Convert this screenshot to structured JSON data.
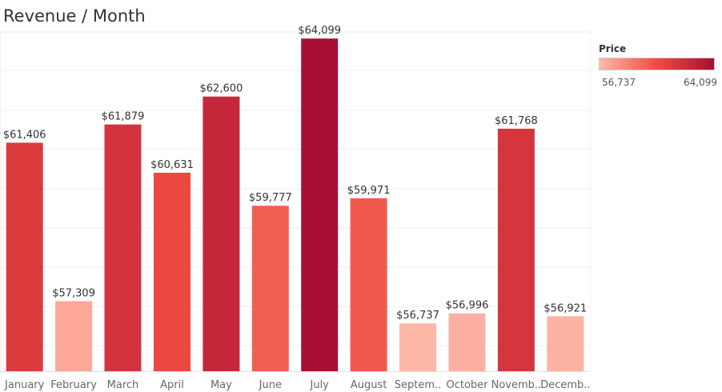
{
  "title": "Revenue / Month",
  "legend": {
    "title": "Price",
    "min_label": "56,737",
    "max_label": "64,099"
  },
  "chart_data": {
    "type": "bar",
    "title": "Revenue / Month",
    "categories": [
      "January",
      "February",
      "March",
      "April",
      "May",
      "June",
      "July",
      "August",
      "September",
      "October",
      "November",
      "December"
    ],
    "category_labels": [
      "January",
      "February",
      "March",
      "April",
      "May",
      "June",
      "July",
      "August",
      "Septem..",
      "October",
      "Novemb..",
      "Decemb.."
    ],
    "values": [
      61406,
      57309,
      61879,
      60631,
      62600,
      59777,
      64099,
      59971,
      56737,
      56996,
      61768,
      56921
    ],
    "value_labels": [
      "$61,406",
      "$57,309",
      "$61,879",
      "$60,631",
      "$62,600",
      "$59,777",
      "$64,099",
      "$59,971",
      "$56,737",
      "$56,996",
      "$61,768",
      "$56,921"
    ],
    "color_scale": {
      "field": "Price",
      "min": 56737,
      "max": 64099,
      "colors": [
        "#feb8a8",
        "#ef4c40",
        "#a80e36"
      ]
    },
    "ylim": [
      55500,
      64900
    ],
    "grid": true,
    "xlabel": "",
    "ylabel": "",
    "legend_position": "top-right"
  }
}
